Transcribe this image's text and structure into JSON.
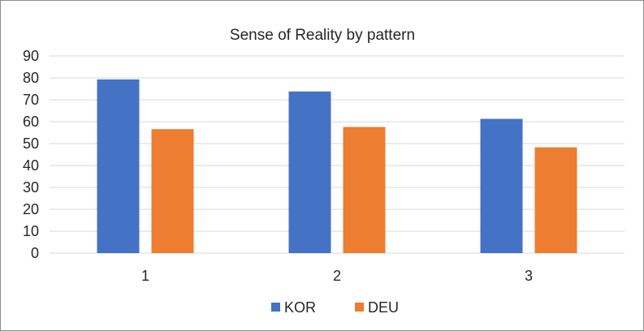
{
  "chart_data": {
    "type": "bar",
    "title": "Sense of Reality by pattern",
    "categories": [
      "1",
      "2",
      "3"
    ],
    "series": [
      {
        "name": "KOR",
        "color": "#4472c4",
        "values": [
          79.3,
          73.8,
          61.3
        ]
      },
      {
        "name": "DEU",
        "color": "#ed7d31",
        "values": [
          56.6,
          57.6,
          48.3
        ]
      }
    ],
    "xlabel": "",
    "ylabel": "",
    "ylim": [
      0,
      90
    ],
    "yticks": [
      0,
      10,
      20,
      30,
      40,
      50,
      60,
      70,
      80,
      90
    ],
    "grid": true,
    "legend_position": "bottom"
  }
}
